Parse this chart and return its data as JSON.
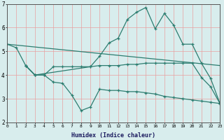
{
  "background_color": "#d8eded",
  "grid_color_minor": "#e8a0a0",
  "line_color": "#2d7d70",
  "xlabel": "Humidex (Indice chaleur)",
  "ylim": [
    2,
    7
  ],
  "xlim": [
    0,
    23
  ],
  "yticks": [
    2,
    3,
    4,
    5,
    6,
    7
  ],
  "xticks": [
    0,
    1,
    2,
    3,
    4,
    5,
    6,
    7,
    8,
    9,
    10,
    11,
    12,
    13,
    14,
    15,
    16,
    17,
    18,
    19,
    20,
    21,
    22,
    23
  ],
  "line_peaked": {
    "x": [
      0,
      1,
      2,
      3,
      9,
      10,
      11,
      12,
      13,
      14,
      15,
      16,
      17,
      18,
      19,
      20,
      21,
      22,
      23
    ],
    "y": [
      5.3,
      5.15,
      4.4,
      4.0,
      4.35,
      4.8,
      5.35,
      5.55,
      6.35,
      6.65,
      6.85,
      5.95,
      6.6,
      6.1,
      5.3,
      5.3,
      4.5,
      3.85,
      2.8
    ]
  },
  "line_flat": {
    "x": [
      2,
      3,
      4,
      5,
      6,
      7,
      8,
      9,
      10,
      11,
      12,
      13,
      14,
      15,
      16,
      17,
      18,
      19,
      20,
      21,
      22,
      23
    ],
    "y": [
      4.4,
      4.0,
      4.0,
      4.35,
      4.35,
      4.35,
      4.35,
      4.35,
      4.4,
      4.4,
      4.4,
      4.45,
      4.45,
      4.5,
      4.5,
      4.5,
      4.5,
      4.5,
      4.5,
      3.9,
      3.5,
      2.8
    ]
  },
  "line_low": {
    "x": [
      2,
      3,
      4,
      5,
      6,
      7,
      8,
      9,
      10,
      11,
      12,
      13,
      14,
      15,
      16,
      17,
      18,
      19,
      20,
      21,
      22,
      23
    ],
    "y": [
      4.4,
      4.0,
      4.0,
      3.7,
      3.65,
      3.15,
      2.5,
      2.65,
      3.4,
      3.35,
      3.35,
      3.3,
      3.3,
      3.25,
      3.2,
      3.1,
      3.05,
      3.0,
      2.95,
      2.9,
      2.85,
      2.8
    ]
  },
  "line_diag": {
    "x": [
      0,
      23
    ],
    "y": [
      5.3,
      4.4
    ]
  }
}
